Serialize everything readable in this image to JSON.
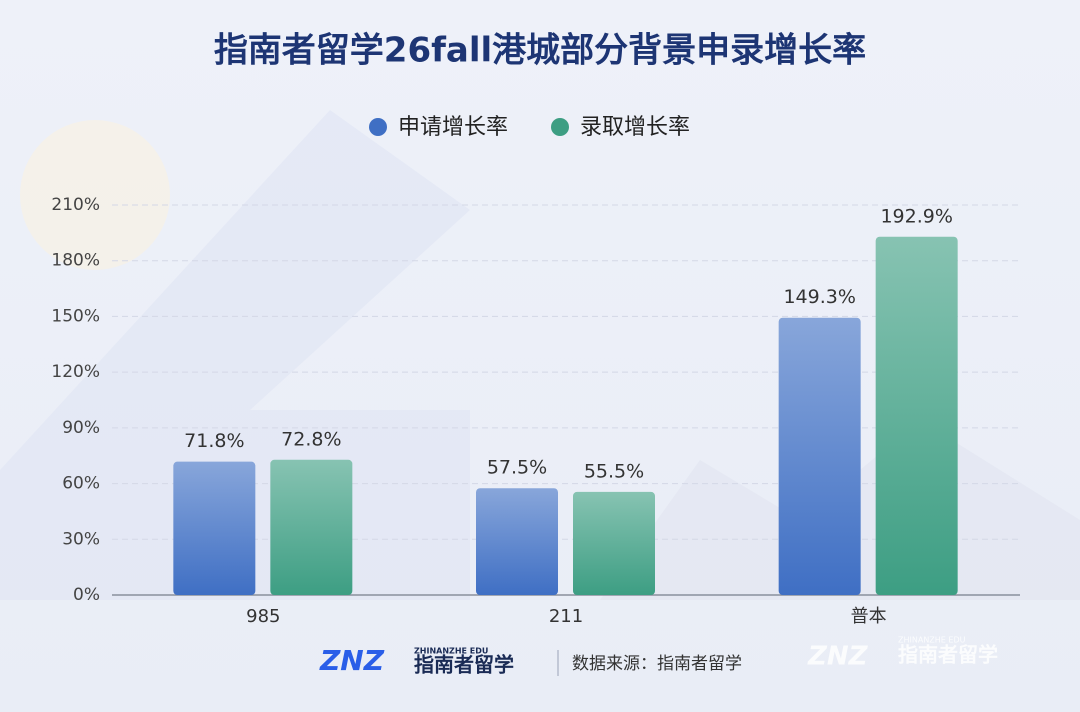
{
  "chart_data": {
    "type": "bar",
    "title": "指南者留学26fall港城部分背景申录增长率",
    "categories": [
      "985",
      "211",
      "普本"
    ],
    "series": [
      {
        "name": "申请增长率",
        "color": "#3f6fc4",
        "values": [
          71.8,
          57.5,
          149.3
        ],
        "value_labels": [
          "71.8%",
          "57.5%",
          "149.3%"
        ]
      },
      {
        "name": "录取增长率",
        "color": "#3d9e83",
        "values": [
          72.8,
          55.5,
          192.9
        ],
        "value_labels": [
          "72.8%",
          "55.5%",
          "192.9%"
        ]
      }
    ],
    "ylim": [
      0,
      210
    ],
    "yticks": [
      {
        "value": 0,
        "label": "0%"
      },
      {
        "value": 30,
        "label": "30%"
      },
      {
        "value": 60,
        "label": "60%"
      },
      {
        "value": 90,
        "label": "90%"
      },
      {
        "value": 120,
        "label": "120%"
      },
      {
        "value": 150,
        "label": "150%"
      },
      {
        "value": 180,
        "label": "180%"
      },
      {
        "value": 210,
        "label": "210%"
      }
    ],
    "grid": true,
    "legend": "top"
  },
  "footer": {
    "logo_mark": "ZNZ",
    "logo_sub": "ZHINANZHE EDU",
    "logo_name": "指南者留学",
    "source": "数据来源：指南者留学",
    "watermark_mark": "ZNZ",
    "watermark_sub": "ZHINANZHE EDU",
    "watermark_name": "指南者留学"
  }
}
